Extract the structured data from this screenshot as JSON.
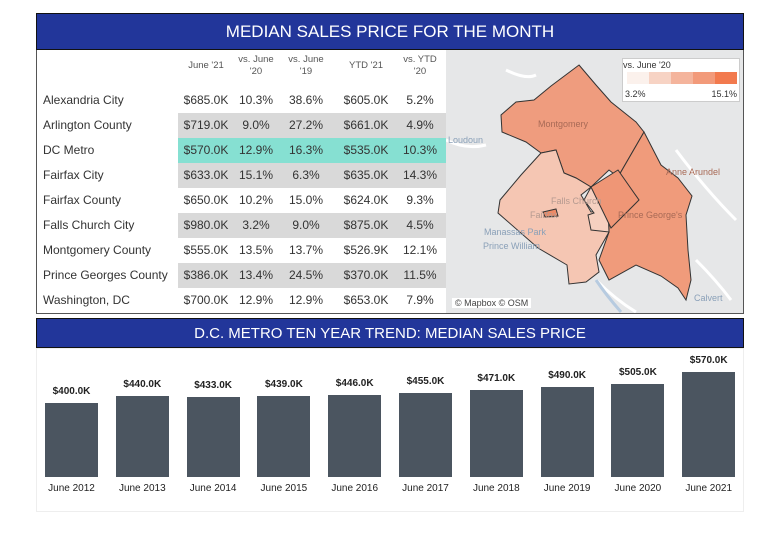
{
  "title": "MEDIAN SALES PRICE FOR THE MONTH",
  "table": {
    "headers": [
      "June '21",
      "vs. June '20",
      "vs. June '19",
      "YTD '21",
      "vs. YTD '20"
    ],
    "header_lines": [
      [
        "June '21"
      ],
      [
        "vs. June",
        "'20"
      ],
      [
        "vs. June",
        "'19"
      ],
      [
        "YTD '21"
      ],
      [
        "vs. YTD",
        "'20"
      ]
    ],
    "rows": [
      {
        "name": "Alexandria City",
        "values": [
          "$685.0K",
          "10.3%",
          "38.6%",
          "$605.0K",
          "5.2%"
        ],
        "shade": "none"
      },
      {
        "name": "Arlington County",
        "values": [
          "$719.0K",
          "9.0%",
          "27.2%",
          "$661.0K",
          "4.9%"
        ],
        "shade": "gray"
      },
      {
        "name": "DC Metro",
        "values": [
          "$570.0K",
          "12.9%",
          "16.3%",
          "$535.0K",
          "10.3%"
        ],
        "shade": "highlight"
      },
      {
        "name": "Fairfax City",
        "values": [
          "$633.0K",
          "15.1%",
          "6.3%",
          "$635.0K",
          "14.3%"
        ],
        "shade": "gray"
      },
      {
        "name": "Fairfax County",
        "values": [
          "$650.0K",
          "10.2%",
          "15.0%",
          "$624.0K",
          "9.3%"
        ],
        "shade": "none"
      },
      {
        "name": "Falls Church City",
        "values": [
          "$980.0K",
          "3.2%",
          "9.0%",
          "$875.0K",
          "4.5%"
        ],
        "shade": "gray"
      },
      {
        "name": "Montgomery County",
        "values": [
          "$555.0K",
          "13.5%",
          "13.7%",
          "$526.9K",
          "12.1%"
        ],
        "shade": "none"
      },
      {
        "name": "Prince Georges County",
        "values": [
          "$386.0K",
          "13.4%",
          "24.5%",
          "$370.0K",
          "11.5%"
        ],
        "shade": "gray"
      },
      {
        "name": "Washington, DC",
        "values": [
          "$700.0K",
          "12.9%",
          "12.9%",
          "$653.0K",
          "7.9%"
        ],
        "shade": "none"
      }
    ],
    "colors": {
      "gray": "#d9d9d9",
      "highlight": "#86e0d2"
    }
  },
  "map": {
    "legend": {
      "title": "vs. June '20",
      "min": "3.2%",
      "max": "15.1%",
      "colors": [
        "#fbf1ec",
        "#f7d3c4",
        "#f4b49c",
        "#f29a7a",
        "#f27a4e"
      ]
    },
    "place_labels": [
      "Montgomery",
      "Loudoun",
      "Anne Arundel",
      "Falls Church",
      "Fairfax",
      "Prince George's",
      "Manassas Park",
      "Prince William",
      "Calvert"
    ],
    "attribution": "© Mapbox © OSM",
    "region_colors": {
      "montgomery": "#ef9c7e",
      "prince_georges": "#f09b7b",
      "fairfax": "#f5c6b3",
      "dc": "#ef9676",
      "fairfax_city": "#ee8a66",
      "arlington_alex": "#f6d0c0"
    }
  },
  "chart_data": {
    "type": "bar",
    "title": "D.C. METRO TEN YEAR TREND: MEDIAN SALES PRICE",
    "categories": [
      "June 2012",
      "June 2013",
      "June 2014",
      "June 2015",
      "June 2016",
      "June 2017",
      "June 2018",
      "June 2019",
      "June 2020",
      "June 2021"
    ],
    "values": [
      400.0,
      440.0,
      433.0,
      439.0,
      446.0,
      455.0,
      471.0,
      490.0,
      505.0,
      570.0
    ],
    "data_labels": [
      "$400.0K",
      "$440.0K",
      "$433.0K",
      "$439.0K",
      "$446.0K",
      "$455.0K",
      "$471.0K",
      "$490.0K",
      "$505.0K",
      "$570.0K"
    ],
    "bar_color": "#4b5560",
    "grid": false
  }
}
